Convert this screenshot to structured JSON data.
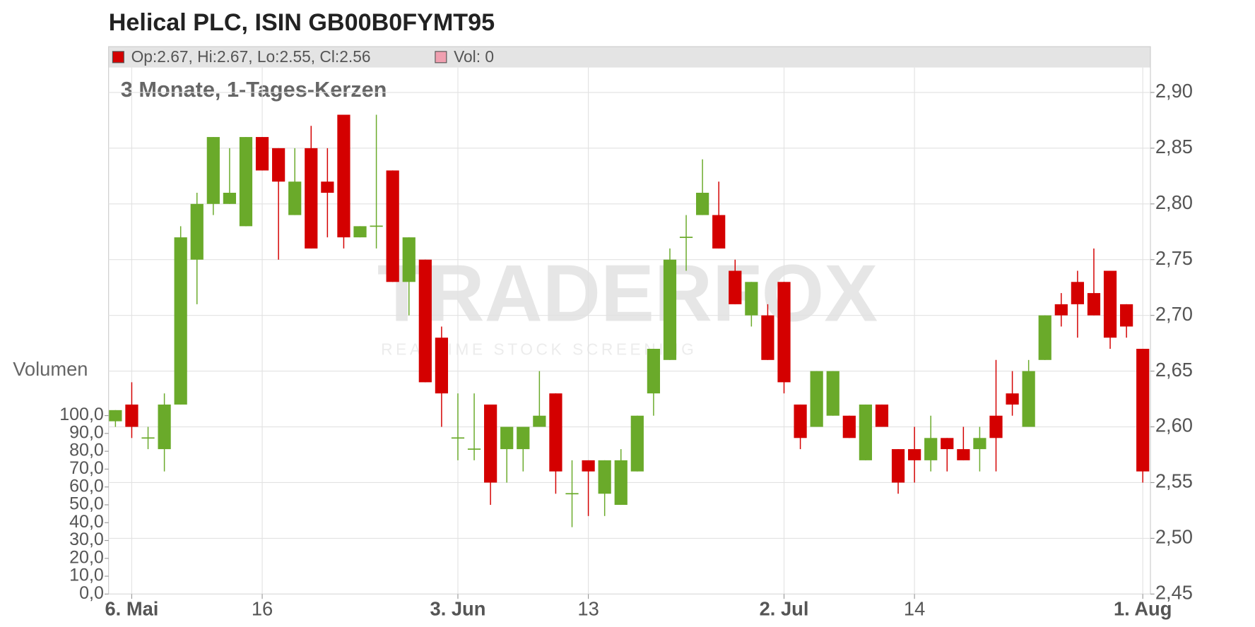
{
  "chart_data": {
    "type": "candlestick",
    "title": "Helical PLC, ISIN GB00B0FYMT95",
    "subtitle": "3 Monate, 1-Tages-Kerzen",
    "legend": [
      {
        "text": "Op:2.67, Hi:2.67, Lo:2.55, Cl:2.56",
        "color": "#d40000"
      },
      {
        "text": "Vol: 0",
        "color": "#f0a0b0"
      }
    ],
    "watermark": [
      "TRADERFOX",
      "REALTIME STOCK SCREENING"
    ],
    "volume_label": "Volumen",
    "up_color": "#6aaa2a",
    "down_color": "#d40000",
    "grid": true,
    "categories": [
      null,
      "6. Mai",
      null,
      null,
      null,
      null,
      null,
      null,
      null,
      "16",
      null,
      null,
      null,
      null,
      null,
      null,
      null,
      null,
      null,
      null,
      null,
      "3. Jun",
      null,
      null,
      null,
      null,
      null,
      null,
      null,
      "13",
      null,
      null,
      null,
      null,
      null,
      null,
      null,
      null,
      null,
      null,
      null,
      "2. Jul",
      null,
      null,
      null,
      null,
      null,
      null,
      null,
      "14",
      null,
      null,
      null,
      null,
      null,
      null,
      null,
      null,
      null,
      null,
      null,
      null,
      null,
      "1. Aug"
    ],
    "open": [
      2.605,
      2.62,
      2.59,
      2.58,
      2.62,
      2.75,
      2.8,
      2.8,
      2.78,
      2.86,
      2.85,
      2.79,
      2.85,
      2.82,
      2.88,
      2.77,
      2.78,
      2.83,
      2.73,
      2.75,
      2.68,
      2.59,
      2.58,
      2.62,
      2.58,
      2.58,
      2.6,
      2.63,
      2.54,
      2.57,
      2.54,
      2.53,
      2.56,
      2.63,
      2.66,
      2.77,
      2.79,
      2.79,
      2.74,
      2.7,
      2.7,
      2.73,
      2.62,
      2.6,
      2.61,
      2.61,
      2.57,
      2.62,
      2.58,
      2.58,
      2.57,
      2.59,
      2.58,
      2.58,
      2.61,
      2.63,
      2.6,
      2.66,
      2.71,
      2.73,
      2.72,
      2.74,
      2.71,
      2.67
    ],
    "high": [
      2.615,
      2.64,
      2.6,
      2.63,
      2.78,
      2.81,
      2.86,
      2.85,
      2.86,
      2.86,
      2.85,
      2.85,
      2.87,
      2.85,
      2.88,
      2.78,
      2.88,
      2.83,
      2.77,
      2.75,
      2.69,
      2.63,
      2.63,
      2.62,
      2.6,
      2.6,
      2.65,
      2.63,
      2.57,
      2.57,
      2.57,
      2.58,
      2.61,
      2.67,
      2.76,
      2.79,
      2.84,
      2.82,
      2.75,
      2.73,
      2.71,
      2.73,
      2.62,
      2.65,
      2.65,
      2.61,
      2.62,
      2.62,
      2.58,
      2.6,
      2.61,
      2.59,
      2.6,
      2.6,
      2.66,
      2.65,
      2.66,
      2.7,
      2.72,
      2.74,
      2.76,
      2.74,
      2.71,
      2.67
    ],
    "low": [
      2.6,
      2.59,
      2.58,
      2.56,
      2.62,
      2.71,
      2.79,
      2.8,
      2.78,
      2.83,
      2.75,
      2.79,
      2.76,
      2.77,
      2.76,
      2.77,
      2.76,
      2.73,
      2.7,
      2.64,
      2.6,
      2.57,
      2.57,
      2.53,
      2.55,
      2.56,
      2.6,
      2.54,
      2.51,
      2.52,
      2.52,
      2.53,
      2.56,
      2.61,
      2.66,
      2.74,
      2.79,
      2.76,
      2.71,
      2.69,
      2.66,
      2.63,
      2.58,
      2.6,
      2.61,
      2.59,
      2.57,
      2.6,
      2.54,
      2.55,
      2.56,
      2.56,
      2.57,
      2.56,
      2.56,
      2.61,
      2.6,
      2.66,
      2.69,
      2.68,
      2.7,
      2.67,
      2.68,
      2.55
    ],
    "close": [
      2.615,
      2.6,
      2.59,
      2.62,
      2.77,
      2.8,
      2.86,
      2.81,
      2.86,
      2.83,
      2.82,
      2.82,
      2.76,
      2.81,
      2.77,
      2.78,
      2.78,
      2.73,
      2.77,
      2.64,
      2.63,
      2.59,
      2.58,
      2.55,
      2.6,
      2.6,
      2.61,
      2.56,
      2.54,
      2.56,
      2.57,
      2.57,
      2.61,
      2.67,
      2.75,
      2.77,
      2.81,
      2.76,
      2.71,
      2.73,
      2.66,
      2.64,
      2.59,
      2.65,
      2.65,
      2.59,
      2.62,
      2.6,
      2.55,
      2.57,
      2.59,
      2.58,
      2.57,
      2.59,
      2.59,
      2.62,
      2.65,
      2.7,
      2.7,
      2.71,
      2.7,
      2.68,
      2.69,
      2.56
    ],
    "ylim": [
      2.45,
      2.9
    ],
    "yticks": [
      {
        "value": 2.45,
        "label": "2,45"
      },
      {
        "value": 2.5,
        "label": "2,50"
      },
      {
        "value": 2.55,
        "label": "2,55"
      },
      {
        "value": 2.6,
        "label": "2,60"
      },
      {
        "value": 2.65,
        "label": "2,65"
      },
      {
        "value": 2.7,
        "label": "2,70"
      },
      {
        "value": 2.75,
        "label": "2,75"
      },
      {
        "value": 2.8,
        "label": "2,80"
      },
      {
        "value": 2.85,
        "label": "2,85"
      },
      {
        "value": 2.9,
        "label": "2,90"
      }
    ],
    "y2lim": [
      0,
      100
    ],
    "y2ticks": [
      {
        "value": 0,
        "label": "0,0"
      },
      {
        "value": 10,
        "label": "10,0"
      },
      {
        "value": 20,
        "label": "20,0"
      },
      {
        "value": 30,
        "label": "30,0"
      },
      {
        "value": 40,
        "label": "40,0"
      },
      {
        "value": 50,
        "label": "50,0"
      },
      {
        "value": 60,
        "label": "60,0"
      },
      {
        "value": 70,
        "label": "70,0"
      },
      {
        "value": 80,
        "label": "80,0"
      },
      {
        "value": 90,
        "label": "90,0"
      },
      {
        "value": 100,
        "label": "100,0"
      }
    ]
  }
}
